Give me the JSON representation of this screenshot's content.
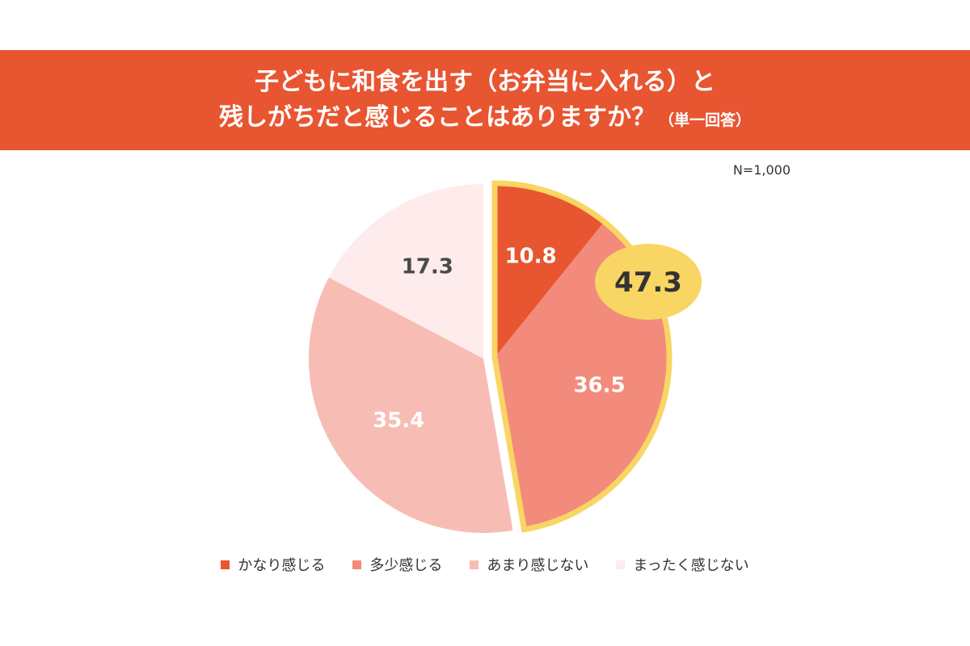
{
  "title": {
    "line1": "子どもに和食を出す（お弁当に入れる）と",
    "line2": "残しがちだと感じることはありますか？",
    "line2_suffix": "（単一回答）"
  },
  "sample_size": "N=1,000",
  "colors": {
    "banner": "#e85531",
    "highlight": "#f9d563"
  },
  "chart_data": {
    "type": "pie",
    "title": "子どもに和食を出す（お弁当に入れる）と残しがちだと感じることはありますか？（単一回答）",
    "unit": "%",
    "start_angle_deg": 0,
    "direction": "clockwise",
    "slices": [
      {
        "label": "かなり感じる",
        "value": 10.8,
        "color": "#e85531",
        "label_color": "#ffffff"
      },
      {
        "label": "多少感じる",
        "value": 36.5,
        "color": "#f28b7b",
        "label_color": "#ffffff"
      },
      {
        "label": "あまり感じない",
        "value": 35.4,
        "color": "#f7bdb4",
        "label_color": "#ffffff"
      },
      {
        "label": "まったく感じない",
        "value": 17.3,
        "color": "#fdeceb",
        "label_color": "#4a4a4a"
      }
    ],
    "highlight": {
      "slices": [
        "かなり感じる",
        "多少感じる"
      ],
      "total_label": "47.3",
      "color": "#f9d563"
    },
    "legend_position": "bottom"
  }
}
